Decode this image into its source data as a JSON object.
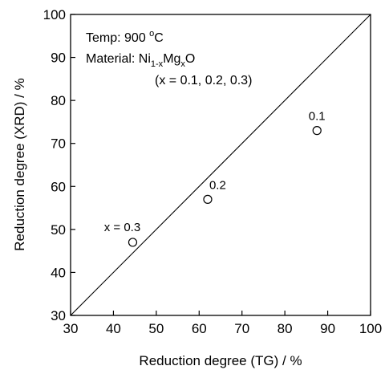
{
  "chart_data": {
    "type": "scatter",
    "title": "",
    "xlabel": "Reduction degree (TG) / %",
    "ylabel": "Reduction degree (XRD) / %",
    "xlim": [
      30,
      100
    ],
    "ylim": [
      30,
      100
    ],
    "xticks": [
      30,
      40,
      50,
      60,
      70,
      80,
      90,
      100
    ],
    "yticks": [
      30,
      40,
      50,
      60,
      70,
      80,
      90,
      100
    ],
    "grid": false,
    "legend": "none",
    "reference_line": {
      "from": [
        30,
        30
      ],
      "to": [
        100,
        100
      ]
    },
    "points": [
      {
        "x": 44.5,
        "y": 47.0,
        "label": "x = 0.3"
      },
      {
        "x": 62.0,
        "y": 57.0,
        "label": "0.2"
      },
      {
        "x": 87.5,
        "y": 73.0,
        "label": "0.1"
      }
    ],
    "annotations": {
      "temp": {
        "prefix": "Temp: 900 ",
        "sup": "o",
        "suffix": "C"
      },
      "material": {
        "prefix": "Material: Ni",
        "sub1": "1-x",
        "mid": "Mg",
        "sub2": "x",
        "suffix": "O"
      },
      "material_range": "(x = 0.1, 0.2, 0.3)"
    }
  }
}
